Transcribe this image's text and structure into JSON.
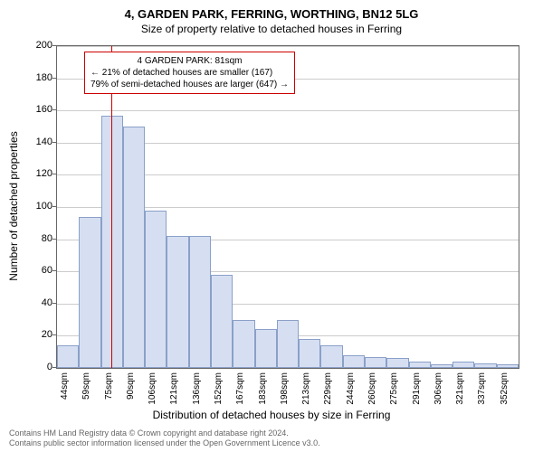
{
  "title": "4, GARDEN PARK, FERRING, WORTHING, BN12 5LG",
  "subtitle": "Size of property relative to detached houses in Ferring",
  "y_axis": {
    "label": "Number of detached properties",
    "min": 0,
    "max": 200,
    "ticks": [
      0,
      20,
      40,
      60,
      80,
      100,
      120,
      140,
      160,
      180,
      200
    ]
  },
  "x_axis": {
    "label": "Distribution of detached houses by size in Ferring",
    "ticks": [
      "44sqm",
      "59sqm",
      "75sqm",
      "90sqm",
      "106sqm",
      "121sqm",
      "136sqm",
      "152sqm",
      "167sqm",
      "183sqm",
      "198sqm",
      "213sqm",
      "229sqm",
      "244sqm",
      "260sqm",
      "275sqm",
      "291sqm",
      "306sqm",
      "321sqm",
      "337sqm",
      "352sqm"
    ]
  },
  "chart": {
    "type": "histogram",
    "bar_fill": "#d6dff2",
    "bar_border": "#8aa0c8",
    "grid_color": "#cccccc",
    "background_color": "#ffffff",
    "values": [
      14,
      94,
      157,
      150,
      98,
      82,
      82,
      58,
      30,
      24,
      30,
      18,
      14,
      8,
      7,
      6,
      4,
      2,
      4,
      3,
      2
    ]
  },
  "marker": {
    "position_value": 81,
    "range_start": 44,
    "range_end": 359,
    "color": "#cc0000"
  },
  "annotation": {
    "line1": "4 GARDEN PARK: 81sqm",
    "line2": "← 21% of detached houses are smaller (167)",
    "line3": "79% of semi-detached houses are larger (647) →"
  },
  "footer": {
    "line1": "Contains HM Land Registry data © Crown copyright and database right 2024.",
    "line2": "Contains public sector information licensed under the Open Government Licence v3.0."
  }
}
